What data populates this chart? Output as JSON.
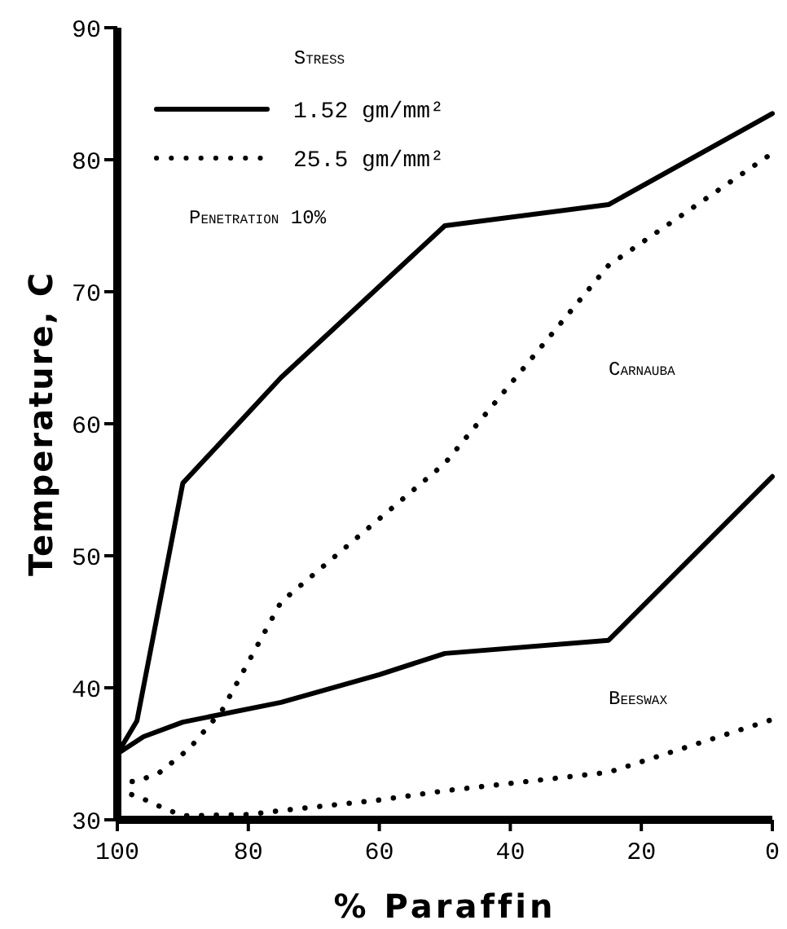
{
  "chart_data": {
    "type": "line",
    "xlabel": "% Paraffin",
    "ylabel": "Temperature, C",
    "legend_title": "Stress",
    "legend": "top left",
    "xlim": [
      100,
      0
    ],
    "ylim": [
      30,
      90
    ],
    "xticks": [
      100,
      80,
      60,
      40,
      20,
      0
    ],
    "yticks": [
      30,
      40,
      50,
      60,
      70,
      80,
      90
    ],
    "grid": false,
    "marker": "none",
    "annotations": [
      "Penetration 10%",
      "Carnauba",
      "Beeswax"
    ],
    "series": [
      {
        "name": "1.52 gm/mm²",
        "color": "#000000",
        "line_style": "solid",
        "x": [
          100,
          97,
          90,
          75,
          50,
          25,
          0
        ],
        "values": [
          35,
          37.5,
          55.5,
          63.5,
          75,
          76.6,
          83.5
        ]
      },
      {
        "name": "25.5 gm/mm²",
        "color": "#000000",
        "line_style": "dotted",
        "x": [
          100,
          97,
          93.5,
          89,
          84,
          75,
          50,
          25,
          0
        ],
        "values": [
          32.9,
          32.9,
          33.6,
          35.4,
          38.3,
          46.5,
          57,
          72,
          80.5
        ]
      },
      {
        "color": "#000000",
        "line_style": "solid",
        "x": [
          100,
          96,
          90,
          75,
          60,
          50,
          25,
          0
        ],
        "values": [
          35,
          36.3,
          37.4,
          38.9,
          41,
          42.6,
          43.6,
          56
        ]
      },
      {
        "color": "#000000",
        "line_style": "dotted",
        "x": [
          100,
          97,
          93,
          90,
          80,
          75,
          60,
          50,
          25,
          0
        ],
        "values": [
          32.2,
          31.8,
          30.9,
          30.3,
          30.4,
          30.7,
          31.5,
          32.2,
          33.6,
          37.6
        ]
      }
    ]
  }
}
